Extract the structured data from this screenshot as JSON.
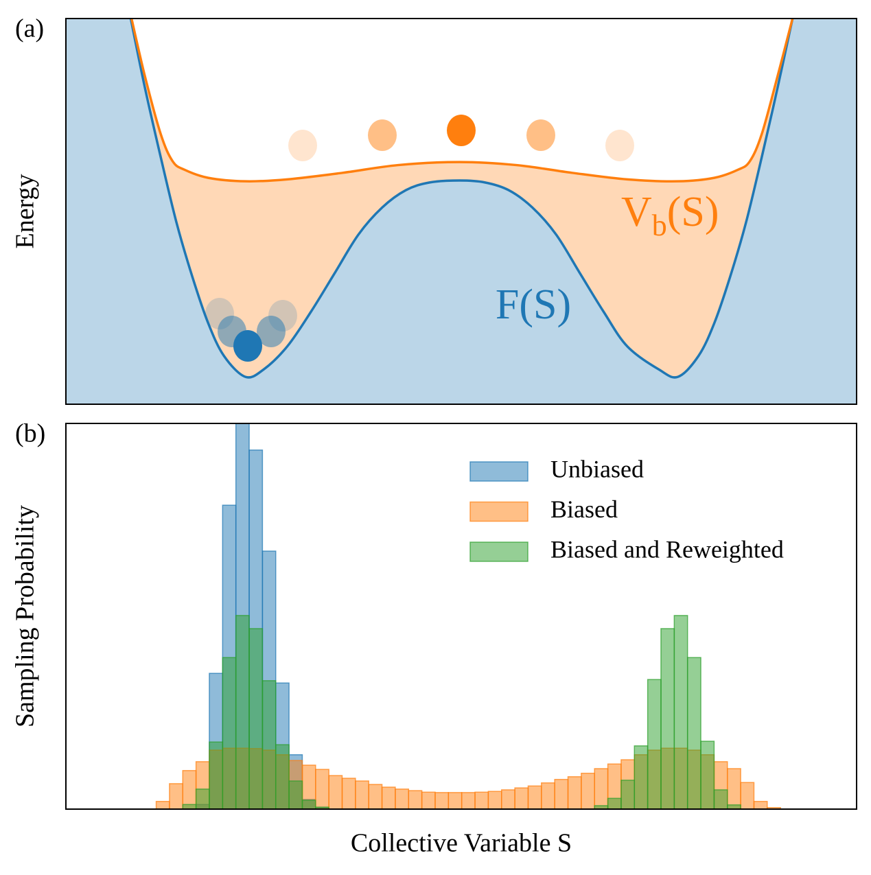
{
  "chart_data": [
    {
      "type": "line",
      "panel_label": "(a)",
      "ylabel": "Energy",
      "xlim": [
        0,
        100
      ],
      "ylim": [
        0,
        100
      ],
      "series": [
        {
          "name": "F(S)",
          "color": "#1f77b4",
          "x": [
            8.2,
            10,
            12,
            14,
            16,
            18,
            20,
            22.7,
            25,
            28,
            31,
            34,
            37,
            40,
            43,
            46,
            49.8,
            53,
            56,
            59,
            62,
            65,
            68,
            71,
            75,
            77.4,
            80,
            82,
            84,
            86,
            88,
            90,
            91.9
          ],
          "values": [
            100,
            82,
            64,
            47,
            33,
            21,
            12.5,
            7.1,
            9,
            15,
            24,
            34,
            44,
            51,
            55.5,
            57.5,
            58,
            57.5,
            55.5,
            51,
            44,
            34,
            24,
            15,
            9,
            7.1,
            12.5,
            21,
            33,
            47,
            64,
            82,
            100
          ]
        },
        {
          "name": "V",
          "subscript": "b",
          "suffix": "(S)",
          "color": "#ff7f0e",
          "x": [
            8.3,
            10,
            12,
            13.5,
            15,
            18,
            22.7,
            28,
            35,
            42,
            49.8,
            57,
            64,
            71,
            77.4,
            82,
            85,
            86.5,
            88,
            90,
            91.9
          ],
          "values": [
            100,
            85,
            70,
            63,
            60.8,
            58.7,
            57.8,
            58.3,
            60,
            62,
            62.8,
            62,
            60,
            58.3,
            57.8,
            58.7,
            60.8,
            63,
            70,
            85,
            100
          ]
        }
      ]
    },
    {
      "type": "histogram",
      "panel_label": "(b)",
      "ylabel": "Sampling Probability",
      "xlabel": "Collective Variable S",
      "xlim": [
        0,
        100
      ],
      "ylim": [
        0,
        100
      ],
      "legend": "upper right",
      "bins": [
        11.42,
        13.1,
        14.78,
        16.46,
        18.14,
        19.82,
        21.5,
        23.18,
        24.86,
        26.54,
        28.22,
        29.9,
        31.58,
        33.26,
        34.94,
        36.62,
        38.3,
        39.98,
        41.66,
        43.34,
        45.02,
        46.7,
        48.38,
        50.06,
        51.74,
        53.42,
        55.1,
        56.78,
        58.46,
        60.14,
        61.82,
        63.5,
        65.18,
        66.86,
        68.54,
        70.22,
        71.9,
        73.58,
        75.26,
        76.94,
        78.62,
        80.3,
        81.98,
        83.66,
        85.34,
        87.02,
        88.7,
        90.38
      ],
      "series": [
        {
          "name": "Unbiased",
          "color": "#1f77b4",
          "values": [
            0,
            0,
            0,
            1.2,
            35.2,
            78.8,
            100,
            93.1,
            66.9,
            32.7,
            14.1,
            2.5,
            0.5,
            0,
            0,
            0,
            0,
            0,
            0,
            0,
            0,
            0,
            0,
            0,
            0,
            0,
            0,
            0,
            0,
            0,
            0,
            0,
            0,
            0,
            0,
            0,
            0,
            0,
            0,
            0,
            0,
            0,
            0,
            0,
            0,
            0,
            0
          ]
        },
        {
          "name": "Biased",
          "color": "#ff7f0e",
          "values": [
            2.0,
            6.6,
            10.0,
            12.3,
            15.3,
            15.8,
            15.8,
            15.7,
            15.3,
            14.1,
            12.6,
            11.4,
            10.3,
            8.7,
            8.0,
            7.3,
            6.4,
            5.7,
            5.2,
            4.8,
            4.4,
            4.3,
            4.3,
            4.3,
            4.4,
            4.6,
            5.0,
            5.5,
            6.0,
            6.8,
            7.7,
            8.4,
            9.3,
            10.5,
            11.7,
            12.8,
            14.1,
            15.3,
            15.8,
            15.8,
            15.3,
            14.1,
            12.3,
            10.5,
            6.9,
            2.0,
            0.4
          ]
        },
        {
          "name": "Biased and Reweighted",
          "color": "#2ca02c",
          "values": [
            0,
            0,
            1.2,
            5.2,
            17.4,
            39.3,
            50.2,
            46.8,
            33.3,
            16.7,
            7.3,
            2.3,
            0.5,
            0,
            0,
            0,
            0,
            0,
            0,
            0,
            0,
            0,
            0,
            0,
            0,
            0,
            0,
            0,
            0,
            0,
            0,
            0,
            0,
            0.9,
            2.8,
            7.5,
            16.4,
            33.6,
            46.8,
            50.2,
            39.3,
            17.6,
            5.0,
            1.1,
            0,
            0,
            0
          ]
        }
      ]
    }
  ]
}
